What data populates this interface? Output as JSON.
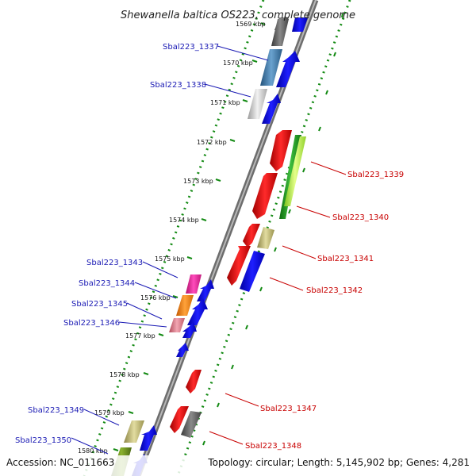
{
  "title": "Shewanella baltica OS223, complete genome",
  "accession": "Accession: NC_011663",
  "summary": "Topology: circular; Length: 5,145,902 bp; Genes: 4,281",
  "colors": {
    "backbone": "#8a8a8a",
    "ticks": "#138a13",
    "left_labels": "#1a1ab4",
    "right_labels": "#c80000"
  },
  "kbp_ticks": [
    "1569 kbp",
    "1570 kbp",
    "1571 kbp",
    "1572 kbp",
    "1573 kbp",
    "1574 kbp",
    "1575 kbp",
    "1576 kbp",
    "1577 kbp",
    "1578 kbp",
    "1579 kbp",
    "1580 kbp"
  ],
  "left_genes": [
    "Sbal223_1337",
    "Sbal223_1338",
    "Sbal223_1343",
    "Sbal223_1344",
    "Sbal223_1345",
    "Sbal223_1346",
    "Sbal223_1349",
    "Sbal223_1350"
  ],
  "right_genes": [
    "Sbal223_1339",
    "Sbal223_1340",
    "Sbal223_1341",
    "Sbal223_1342",
    "Sbal223_1347",
    "Sbal223_1348"
  ]
}
